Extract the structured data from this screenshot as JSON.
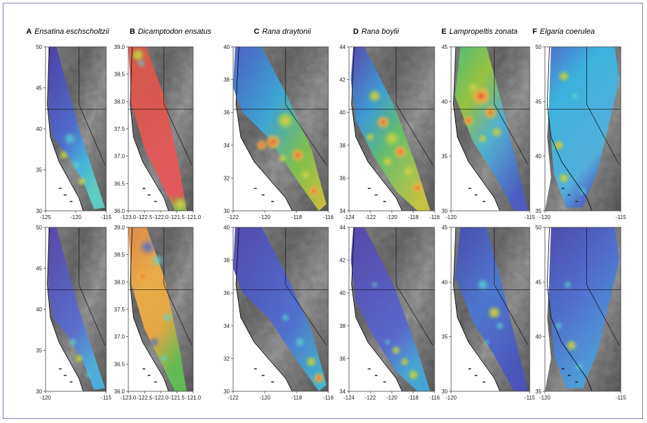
{
  "figure": {
    "panels": [
      {
        "letter": "A",
        "species": "Ensatina eschscholtzii",
        "y_ticks_top": [
          "50",
          "45",
          "40",
          "35",
          "30"
        ],
        "y_ticks_bottom": [
          "50",
          "45",
          "40",
          "35",
          "30"
        ],
        "x_ticks_top": [
          "-125",
          "-120",
          "-115"
        ],
        "x_ticks_bottom": [
          "-120",
          "-115"
        ]
      },
      {
        "letter": "B",
        "species": "Dicamptodon ensatus",
        "y_ticks_top": [
          "39.0",
          "38.5",
          "38.0",
          "37.5",
          "37.0",
          "36.5",
          "36.0"
        ],
        "y_ticks_bottom": [
          "39.0",
          "38.5",
          "38.0",
          "37.5",
          "37.0",
          "36.5",
          "36.0"
        ],
        "x_ticks_top": [
          "-123.0",
          "-122.5",
          "-122.0",
          "-121.5",
          "-121.0"
        ],
        "x_ticks_bottom": [
          "-123.0",
          "-122.5",
          "-122.0",
          "-121.5",
          "-121.0"
        ]
      },
      {
        "letter": "C",
        "species": "Rana draytonii",
        "y_ticks_top": [
          "40",
          "38",
          "36",
          "34",
          "32",
          "30"
        ],
        "y_ticks_bottom": [
          "40",
          "38",
          "36",
          "34",
          "32",
          "30"
        ],
        "x_ticks_top": [
          "-122",
          "-120",
          "-118",
          "-116"
        ],
        "x_ticks_bottom": [
          "-122",
          "-120",
          "-118",
          "-116"
        ]
      },
      {
        "letter": "D",
        "species": "Rana boylii",
        "y_ticks_top": [
          "44",
          "42",
          "40",
          "38",
          "36",
          "34"
        ],
        "y_ticks_bottom": [
          "44",
          "42",
          "40",
          "38",
          "36",
          "34"
        ],
        "x_ticks_top": [
          "-124",
          "-122",
          "-120",
          "-118",
          "-116"
        ],
        "x_ticks_bottom": [
          "-124",
          "-122",
          "-120",
          "-118",
          "-116"
        ]
      },
      {
        "letter": "E",
        "species": "Lampropeltis zonata",
        "y_ticks_top": [
          "45",
          "40",
          "35",
          "30"
        ],
        "y_ticks_bottom": [
          "45",
          "40",
          "35",
          "30"
        ],
        "x_ticks_top": [
          "-120",
          "-115"
        ],
        "x_ticks_bottom": [
          "-120",
          "-115"
        ]
      },
      {
        "letter": "F",
        "species": "Elgaria coerulea",
        "y_ticks_top": [
          "50",
          "45",
          "40",
          "35"
        ],
        "y_ticks_bottom": [
          "50",
          "45",
          "40",
          "35"
        ],
        "x_ticks_top": [
          "-120",
          "-115"
        ],
        "x_ticks_bottom": [
          "-120",
          "-115"
        ]
      }
    ]
  }
}
